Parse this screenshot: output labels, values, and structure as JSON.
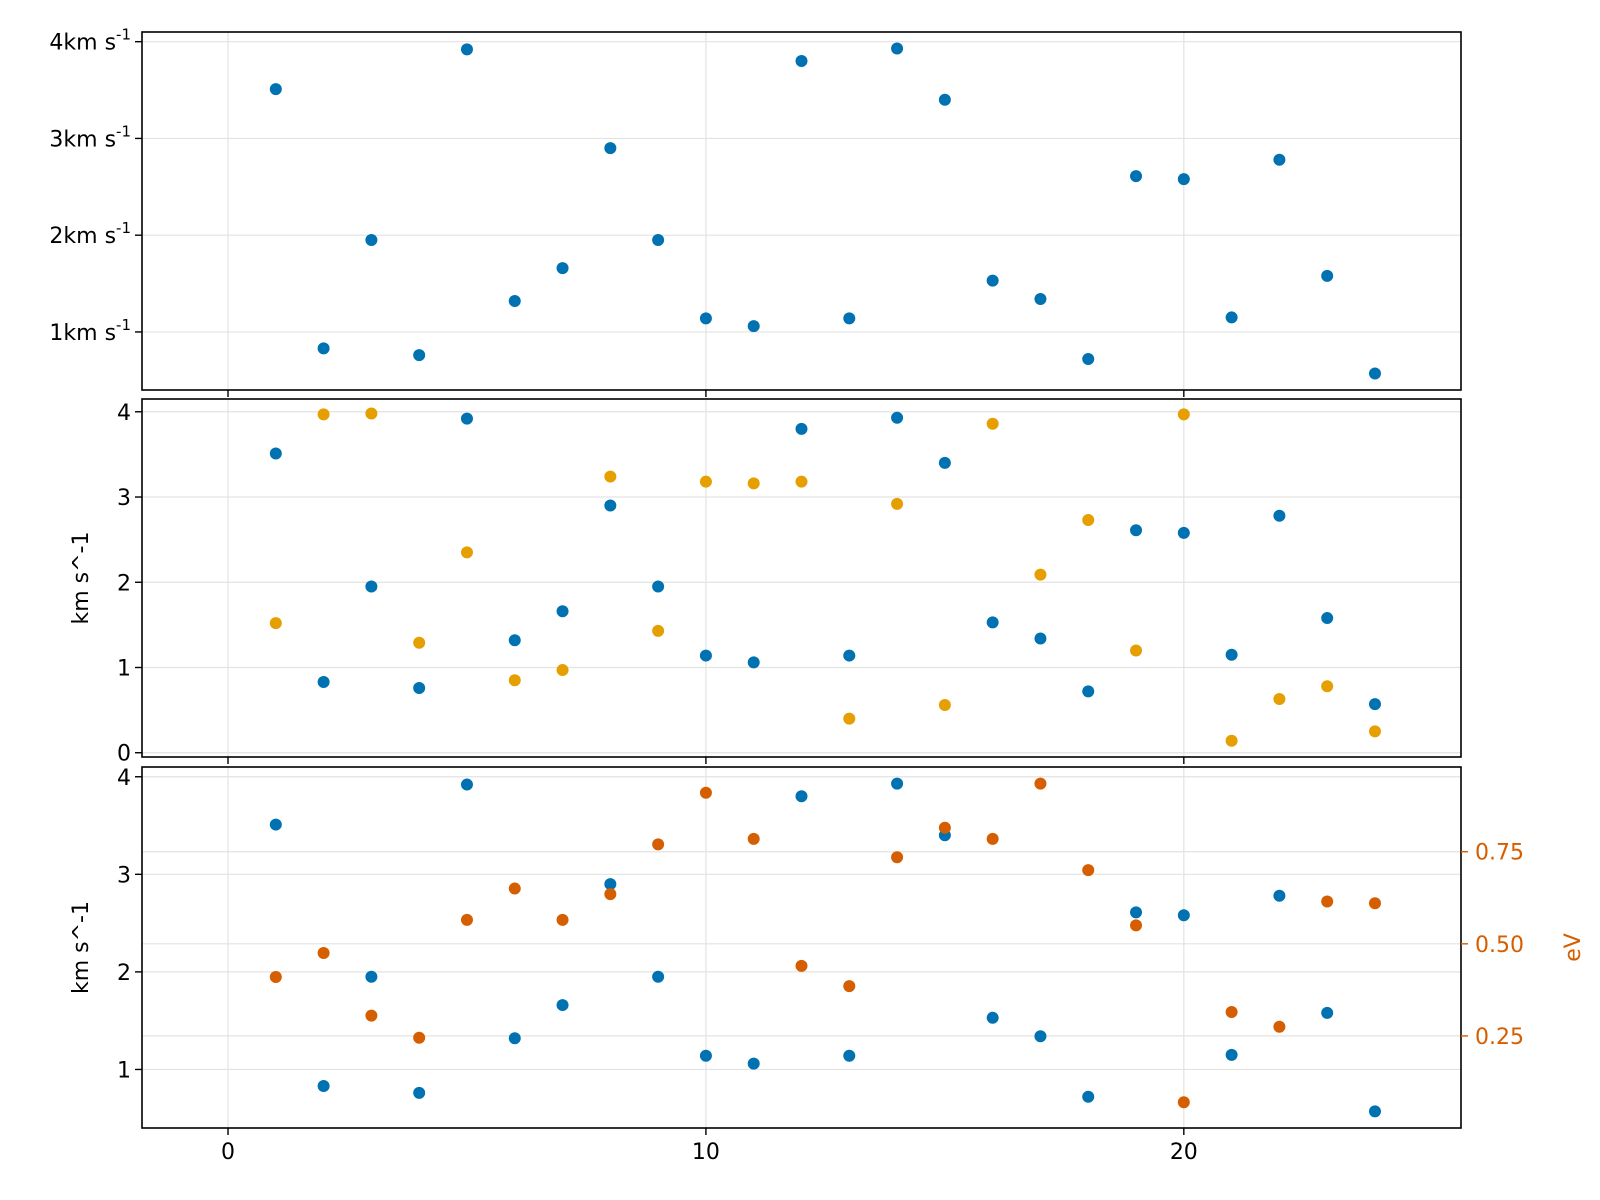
{
  "colors": {
    "blue": "#0072b2",
    "yellow": "#e69f00",
    "orange": "#d55e00",
    "grid": "#e3e3e3"
  },
  "chart_data": [
    {
      "type": "scatter",
      "xlim": [
        -1.8,
        25.8
      ],
      "ylim": [
        0.4,
        4.1
      ],
      "xticks": [
        0,
        10,
        20
      ],
      "show_xtick_labels": false,
      "yticks": [
        {
          "value": 1,
          "label": "1km s",
          "sup": "-1"
        },
        {
          "value": 2,
          "label": "2km s",
          "sup": "-1"
        },
        {
          "value": 3,
          "label": "3km s",
          "sup": "-1"
        },
        {
          "value": 4,
          "label": "4km s",
          "sup": "-1"
        }
      ],
      "ylabel": "",
      "grid": true,
      "series": [
        {
          "color": "#0072b2",
          "x": [
            1,
            2,
            3,
            4,
            5,
            6,
            7,
            8,
            9,
            10,
            11,
            12,
            13,
            14,
            15,
            16,
            17,
            18,
            19,
            20,
            21,
            22,
            23,
            24
          ],
          "y": [
            3.51,
            0.83,
            1.95,
            0.76,
            3.92,
            1.32,
            1.66,
            2.9,
            1.95,
            1.14,
            1.06,
            3.8,
            1.14,
            3.93,
            3.4,
            1.53,
            1.34,
            0.72,
            2.61,
            2.58,
            1.15,
            2.78,
            1.58,
            0.57
          ]
        }
      ]
    },
    {
      "type": "scatter",
      "xlim": [
        -1.8,
        25.8
      ],
      "ylim": [
        -0.05,
        4.15
      ],
      "xticks": [
        0,
        10,
        20
      ],
      "show_xtick_labels": false,
      "yticks": [
        {
          "value": 0,
          "label": "0"
        },
        {
          "value": 1,
          "label": "1"
        },
        {
          "value": 2,
          "label": "2"
        },
        {
          "value": 3,
          "label": "3"
        },
        {
          "value": 4,
          "label": "4"
        }
      ],
      "ylabel": "km s^-1",
      "grid": true,
      "series": [
        {
          "color": "#0072b2",
          "x": [
            1,
            2,
            3,
            4,
            5,
            6,
            7,
            8,
            9,
            10,
            11,
            12,
            13,
            14,
            15,
            16,
            17,
            18,
            19,
            20,
            21,
            22,
            23,
            24
          ],
          "y": [
            3.51,
            0.83,
            1.95,
            0.76,
            3.92,
            1.32,
            1.66,
            2.9,
            1.95,
            1.14,
            1.06,
            3.8,
            1.14,
            3.93,
            3.4,
            1.53,
            1.34,
            0.72,
            2.61,
            2.58,
            1.15,
            2.78,
            1.58,
            0.57
          ]
        },
        {
          "color": "#e69f00",
          "x": [
            1,
            2,
            3,
            4,
            5,
            6,
            7,
            8,
            9,
            10,
            11,
            12,
            13,
            14,
            15,
            16,
            17,
            18,
            19,
            20,
            21,
            22,
            23,
            24
          ],
          "y": [
            1.52,
            3.97,
            3.98,
            1.29,
            2.35,
            0.85,
            0.97,
            3.24,
            1.43,
            3.18,
            3.16,
            3.18,
            0.4,
            2.92,
            0.56,
            3.86,
            2.09,
            2.73,
            1.2,
            3.97,
            0.14,
            0.63,
            0.78,
            0.25
          ]
        }
      ]
    },
    {
      "type": "scatter",
      "xlim": [
        -1.8,
        25.8
      ],
      "ylim": [
        0.4,
        4.1
      ],
      "xticks": [
        0,
        10,
        20
      ],
      "show_xtick_labels": true,
      "xtick_labels": [
        "0",
        "10",
        "20"
      ],
      "yticks": [
        {
          "value": 1,
          "label": "1"
        },
        {
          "value": 2,
          "label": "2"
        },
        {
          "value": 3,
          "label": "3"
        },
        {
          "value": 4,
          "label": "4"
        }
      ],
      "ylabel": "km s^-1",
      "grid": true,
      "right_axis": {
        "ylim": [
          0.0,
          0.98
        ],
        "yticks": [
          {
            "value": 0.25,
            "label": "0.25"
          },
          {
            "value": 0.5,
            "label": "0.50"
          },
          {
            "value": 0.75,
            "label": "0.75"
          }
        ],
        "ylabel": "eV",
        "color": "#d55e00"
      },
      "series": [
        {
          "color": "#0072b2",
          "axis": "left",
          "x": [
            1,
            2,
            3,
            4,
            5,
            6,
            7,
            8,
            9,
            10,
            11,
            12,
            13,
            14,
            15,
            16,
            17,
            18,
            19,
            20,
            21,
            22,
            23,
            24
          ],
          "y": [
            3.51,
            0.83,
            1.95,
            0.76,
            3.92,
            1.32,
            1.66,
            2.9,
            1.95,
            1.14,
            1.06,
            3.8,
            1.14,
            3.93,
            3.4,
            1.53,
            1.34,
            0.72,
            2.61,
            2.58,
            1.15,
            2.78,
            1.58,
            0.57
          ]
        },
        {
          "color": "#d55e00",
          "axis": "right",
          "x": [
            1,
            2,
            3,
            4,
            5,
            6,
            7,
            8,
            9,
            10,
            11,
            12,
            13,
            14,
            15,
            16,
            17,
            18,
            19,
            20,
            21,
            22,
            23,
            24
          ],
          "y": [
            0.41,
            0.475,
            0.305,
            0.245,
            0.565,
            0.65,
            0.565,
            0.635,
            0.77,
            0.91,
            0.785,
            0.44,
            0.385,
            0.735,
            0.815,
            0.785,
            0.935,
            0.7,
            0.55,
            0.07,
            0.315,
            0.275,
            0.615,
            0.61
          ]
        }
      ]
    }
  ]
}
